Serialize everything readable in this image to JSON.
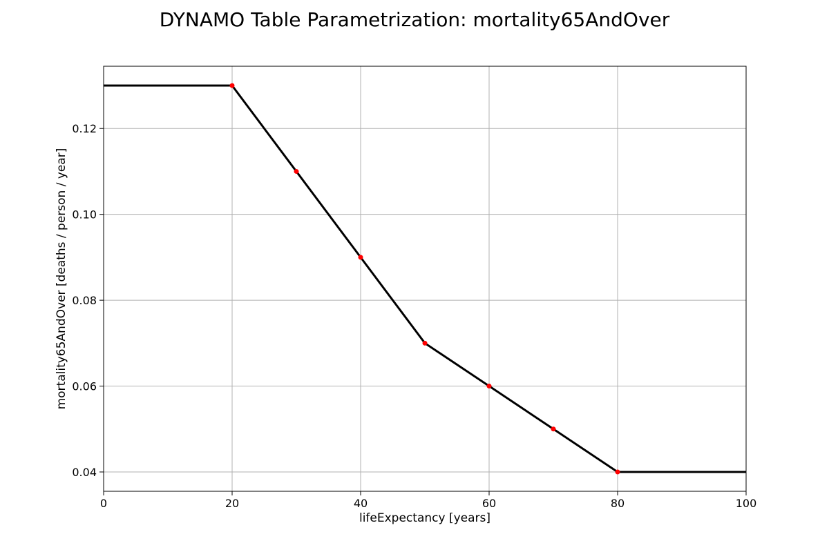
{
  "chart_data": {
    "type": "line",
    "title": "DYNAMO Table Parametrization: mortality65AndOver",
    "xlabel": "lifeExpectancy [years]",
    "ylabel": "mortality65AndOver [deaths / person / year]",
    "xlim": [
      0,
      100
    ],
    "ylim": [
      0.0355,
      0.1345
    ],
    "xticks": [
      0,
      20,
      40,
      60,
      80,
      100
    ],
    "xtick_labels": [
      "0",
      "20",
      "40",
      "60",
      "80",
      "100"
    ],
    "yticks": [
      0.04,
      0.06,
      0.08,
      0.1,
      0.12
    ],
    "ytick_labels": [
      "0.04",
      "0.06",
      "0.08",
      "0.10",
      "0.12"
    ],
    "grid": true,
    "line": {
      "color": "#000000",
      "x": [
        0,
        20,
        30,
        40,
        50,
        60,
        70,
        80,
        100
      ],
      "y": [
        0.13,
        0.13,
        0.11,
        0.09,
        0.07,
        0.06,
        0.05,
        0.04,
        0.04
      ]
    },
    "points": {
      "color": "#ff0000",
      "x": [
        20,
        30,
        40,
        50,
        60,
        70,
        80
      ],
      "y": [
        0.13,
        0.11,
        0.09,
        0.07,
        0.06,
        0.05,
        0.04
      ]
    }
  }
}
